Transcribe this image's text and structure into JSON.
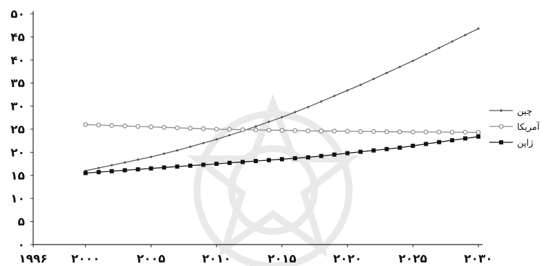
{
  "chart_data": {
    "type": "line",
    "title": "",
    "xlabel": "",
    "ylabel": "",
    "xlim": [
      1996,
      2030
    ],
    "ylim": [
      0,
      50
    ],
    "grid": false,
    "legend_position": "right",
    "x_tick_labels": [
      "۱۹۹۶",
      "۲۰۰۰",
      "۲۰۰۵",
      "۲۰۱۰",
      "۲۰۱۵",
      "۲۰۲۰",
      "۲۰۲۵",
      "۲۰۳۰"
    ],
    "x_ticks": [
      1996,
      2000,
      2005,
      2010,
      2015,
      2020,
      2025,
      2030
    ],
    "y_tick_labels": [
      "۰",
      "۵",
      "۱۰",
      "۱۵",
      "۲۰",
      "۲۵",
      "۳۰",
      "۳۵",
      "۴۰",
      "۴۵",
      "۵۰"
    ],
    "y_ticks": [
      0,
      5,
      10,
      15,
      20,
      25,
      30,
      35,
      40,
      45,
      50
    ],
    "x": [
      2000,
      2001,
      2002,
      2003,
      2004,
      2005,
      2006,
      2007,
      2008,
      2009,
      2010,
      2011,
      2012,
      2013,
      2014,
      2015,
      2016,
      2017,
      2018,
      2019,
      2020,
      2021,
      2022,
      2023,
      2024,
      2025,
      2026,
      2027,
      2028,
      2029,
      2030
    ],
    "series": [
      {
        "name": "چین",
        "color": "#555555",
        "marker": "small-dot",
        "values": [
          16,
          16.6,
          17.2,
          17.8,
          18.4,
          19.0,
          19.7,
          20.4,
          21.2,
          22.0,
          22.8,
          23.7,
          24.6,
          25.6,
          26.6,
          27.6,
          28.7,
          29.8,
          31.0,
          32.2,
          33.4,
          34.6,
          35.9,
          37.2,
          38.5,
          39.8,
          41.2,
          42.6,
          44.0,
          45.4,
          46.8
        ]
      },
      {
        "name": "آمریکا",
        "color": "#888888",
        "marker": "open-circle",
        "values": [
          26,
          25.9,
          25.8,
          25.7,
          25.6,
          25.5,
          25.4,
          25.3,
          25.2,
          25.1,
          25.0,
          24.95,
          24.9,
          24.85,
          24.8,
          24.75,
          24.7,
          24.65,
          24.6,
          24.6,
          24.55,
          24.5,
          24.5,
          24.45,
          24.45,
          24.4,
          24.4,
          24.4,
          24.35,
          24.35,
          24.3
        ]
      },
      {
        "name": "ژاپن",
        "color": "#111111",
        "marker": "filled-square",
        "values": [
          15.5,
          15.7,
          15.9,
          16.1,
          16.3,
          16.5,
          16.7,
          16.9,
          17.1,
          17.3,
          17.5,
          17.7,
          17.9,
          18.1,
          18.3,
          18.5,
          18.7,
          18.9,
          19.2,
          19.5,
          19.8,
          20.1,
          20.4,
          20.7,
          21.0,
          21.4,
          21.8,
          22.2,
          22.6,
          23.0,
          23.4
        ]
      }
    ]
  }
}
